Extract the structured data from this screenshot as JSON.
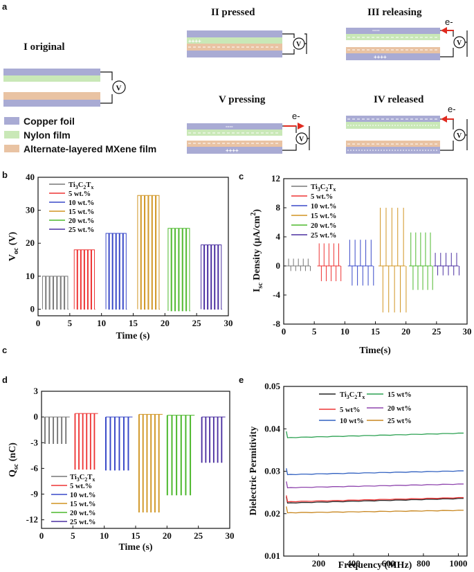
{
  "panel_a": {
    "label": "a",
    "stages": {
      "s1": "I   original",
      "s2": "II pressed",
      "s3": "III  releasing",
      "s4": "IV  released",
      "s5": "V pressing"
    },
    "materials": [
      "Copper foil",
      "Nylon film",
      "Alternate-layered MXene film"
    ],
    "voltmeter": "V",
    "electron": "e-",
    "charges_pos": "++++",
    "charges_neg": "----",
    "colors": {
      "copper": "#a9abd4",
      "nylon": "#c9e8b7",
      "mxene": "#e9c3a3",
      "arrow": "#e02a1f"
    }
  },
  "chart_data": [
    {
      "id": "b",
      "type": "line",
      "panel_label": "b",
      "xlabel": "Time (s)",
      "ylabel_main": "V",
      "ylabel_sub": "oc",
      "ylabel_unit": "(V)",
      "xlim": [
        0,
        30
      ],
      "ylim": [
        -2,
        40
      ],
      "xticks": [
        0,
        5,
        10,
        15,
        20,
        25,
        30
      ],
      "yticks": [
        0,
        10,
        20,
        30,
        40
      ],
      "series": [
        {
          "name": "Ti3C2Tx",
          "color": "#777777",
          "start": 0.7,
          "end": 4.8,
          "high": 10.0,
          "low": 0.0,
          "cycles": 7
        },
        {
          "name": "5 wt.%",
          "color": "#ee3333",
          "start": 5.7,
          "end": 9.0,
          "high": 18.0,
          "low": 0.0,
          "cycles": 6
        },
        {
          "name": "10 wt.%",
          "color": "#3848c8",
          "start": 10.7,
          "end": 14.0,
          "high": 23.0,
          "low": 0.0,
          "cycles": 6
        },
        {
          "name": "15 wt.%",
          "color": "#d09420",
          "start": 15.7,
          "end": 19.2,
          "high": 34.5,
          "low": 0.0,
          "cycles": 6
        },
        {
          "name": "20 wt.%",
          "color": "#4cb82c",
          "start": 20.5,
          "end": 24.0,
          "high": 24.5,
          "low": -0.5,
          "cycles": 6
        },
        {
          "name": "25 wt.%",
          "color": "#4a2ea0",
          "start": 25.7,
          "end": 29.0,
          "high": 19.5,
          "low": 0.0,
          "cycles": 6
        }
      ]
    },
    {
      "id": "c",
      "type": "line",
      "panel_label": "c",
      "xlabel": "Time(s)",
      "ylabel_main": "I",
      "ylabel_sub": "sc",
      "ylabel_unit": " Density (μA/cm",
      "ylabel_sup": "2",
      "ylabel_end": ")",
      "xlim": [
        0,
        30
      ],
      "ylim": [
        -8,
        12
      ],
      "xticks": [
        0,
        5,
        10,
        15,
        20,
        25,
        30
      ],
      "yticks": [
        -8,
        -4,
        0,
        4,
        8,
        12
      ],
      "series": [
        {
          "name": "Ti3C2Tx",
          "color": "#777777",
          "start": 0.8,
          "end": 4.0,
          "pos": 1.0,
          "neg": -0.7,
          "cycles": 5
        },
        {
          "name": "5 wt.%",
          "color": "#ee3333",
          "start": 5.8,
          "end": 9.0,
          "pos": 3.1,
          "neg": -2.1,
          "cycles": 5
        },
        {
          "name": "10 wt.%",
          "color": "#3848c8",
          "start": 10.8,
          "end": 14.3,
          "pos": 3.6,
          "neg": -2.7,
          "cycles": 5
        },
        {
          "name": "15 wt.%",
          "color": "#d09420",
          "start": 15.8,
          "end": 19.6,
          "pos": 8.0,
          "neg": -6.4,
          "cycles": 5
        },
        {
          "name": "20 wt.%",
          "color": "#4cb82c",
          "start": 20.8,
          "end": 24.0,
          "pos": 4.6,
          "neg": -3.3,
          "cycles": 5
        },
        {
          "name": "25 wt.%",
          "color": "#4a2ea0",
          "start": 24.8,
          "end": 28.3,
          "pos": 1.8,
          "neg": -1.3,
          "cycles": 5
        }
      ]
    },
    {
      "id": "d",
      "type": "line",
      "panel_label": "d",
      "extra_label": "c",
      "xlabel": "Time (s)",
      "ylabel_main": "Q",
      "ylabel_sub": "sc",
      "ylabel_unit": " (nC)",
      "xlim": [
        0,
        30
      ],
      "ylim": [
        -13,
        3
      ],
      "xticks": [
        0,
        5,
        10,
        15,
        20,
        25,
        30
      ],
      "yticks": [
        3,
        0,
        -3,
        -6,
        -9,
        -12
      ],
      "series": [
        {
          "name": "Ti3C2Tx",
          "color": "#777777",
          "start": 0.5,
          "end": 4.5,
          "high": 0.0,
          "low": -3.1,
          "cycles": 6
        },
        {
          "name": "5 wt.%",
          "color": "#ee3333",
          "start": 5.3,
          "end": 9.0,
          "high": 0.4,
          "low": -6.1,
          "cycles": 6
        },
        {
          "name": "10 wt.%",
          "color": "#3848c8",
          "start": 10.2,
          "end": 14.5,
          "high": 0.0,
          "low": -6.2,
          "cycles": 6
        },
        {
          "name": "15 wt.%",
          "color": "#d09420",
          "start": 15.5,
          "end": 19.3,
          "high": 0.3,
          "low": -11.1,
          "cycles": 6
        },
        {
          "name": "20 wt.%",
          "color": "#4cb82c",
          "start": 20.0,
          "end": 24.4,
          "high": 0.2,
          "low": -9.1,
          "cycles": 6
        },
        {
          "name": "25 wt.%",
          "color": "#4a2ea0",
          "start": 25.5,
          "end": 29.3,
          "high": 0.0,
          "low": -5.3,
          "cycles": 6
        }
      ]
    },
    {
      "id": "e",
      "type": "line",
      "panel_label": "e",
      "xlabel": "Frequency  (MHz)",
      "ylabel": "Dielectric Permitivity",
      "xlim": [
        0,
        1050
      ],
      "ylim": [
        0.01,
        0.05
      ],
      "xticks": [
        200,
        400,
        600,
        800,
        1000
      ],
      "yticks": [
        0.01,
        0.02,
        0.03,
        0.04,
        0.05
      ],
      "series": [
        {
          "name": "Ti3C2Tx",
          "color": "#222222",
          "y0": 0.0225,
          "y1": 0.0236
        },
        {
          "name": "5 wt%",
          "color": "#ee3333",
          "y0": 0.0228,
          "y1": 0.0238
        },
        {
          "name": "10 wt%",
          "color": "#3060c0",
          "y0": 0.0292,
          "y1": 0.0301
        },
        {
          "name": "15 wt%",
          "color": "#2aa050",
          "y0": 0.0379,
          "y1": 0.039
        },
        {
          "name": "20 wt%",
          "color": "#8e44ad",
          "y0": 0.0261,
          "y1": 0.027
        },
        {
          "name": "25 wt%",
          "color": "#c8861e",
          "y0": 0.0202,
          "y1": 0.0208
        }
      ]
    }
  ]
}
